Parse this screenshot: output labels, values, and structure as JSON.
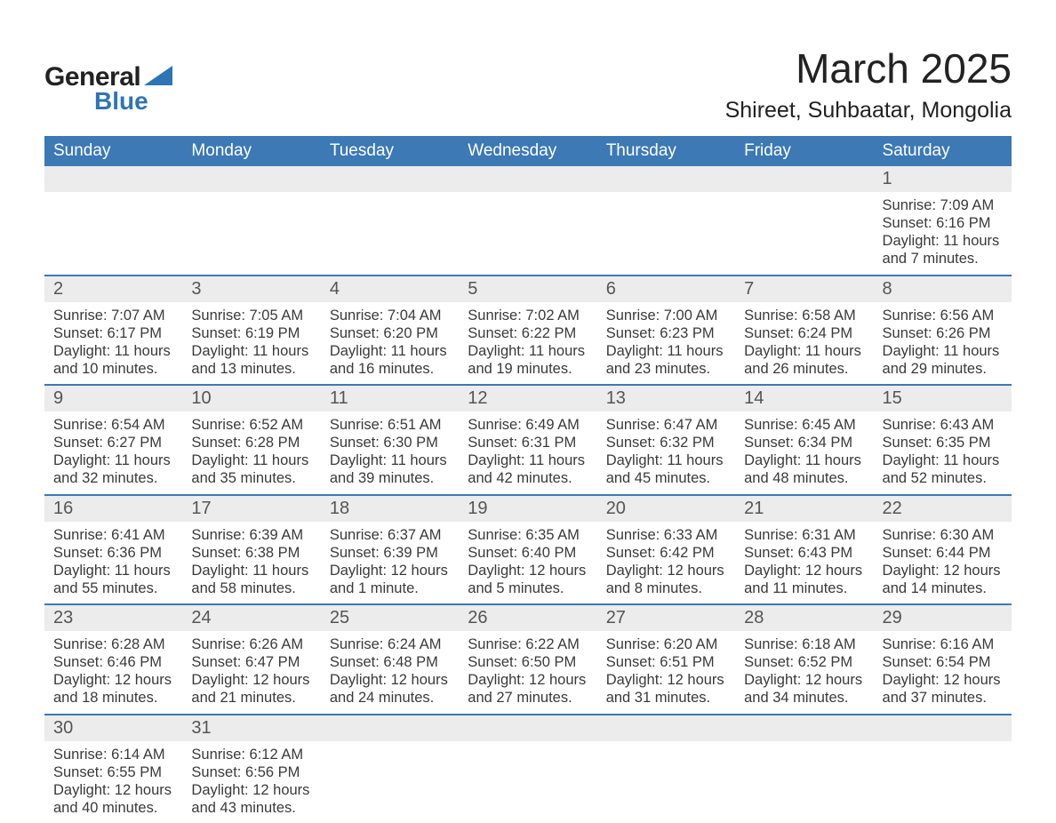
{
  "logo": {
    "line1": "General",
    "line2": "Blue"
  },
  "title": "March 2025",
  "location": "Shireet, Suhbaatar, Mongolia",
  "colors": {
    "header_bg": "#3c79b5",
    "header_text": "#ffffff",
    "daynum_bg": "#ececec",
    "daynum_text": "#555555",
    "body_text": "#3a3a3a",
    "week_separator": "#3c79b5",
    "brand_blue": "#2f74b5"
  },
  "typography": {
    "title_fontsize": 46,
    "location_fontsize": 25,
    "dayheader_fontsize": 19,
    "daynum_fontsize": 20,
    "detail_fontsize": 16.5
  },
  "day_headers": [
    "Sunday",
    "Monday",
    "Tuesday",
    "Wednesday",
    "Thursday",
    "Friday",
    "Saturday"
  ],
  "labels": {
    "sunrise": "Sunrise:",
    "sunset": "Sunset:",
    "daylight": "Daylight:"
  },
  "weeks": [
    [
      null,
      null,
      null,
      null,
      null,
      null,
      {
        "n": "1",
        "sr": "7:09 AM",
        "ss": "6:16 PM",
        "dl": "11 hours and 7 minutes."
      }
    ],
    [
      {
        "n": "2",
        "sr": "7:07 AM",
        "ss": "6:17 PM",
        "dl": "11 hours and 10 minutes."
      },
      {
        "n": "3",
        "sr": "7:05 AM",
        "ss": "6:19 PM",
        "dl": "11 hours and 13 minutes."
      },
      {
        "n": "4",
        "sr": "7:04 AM",
        "ss": "6:20 PM",
        "dl": "11 hours and 16 minutes."
      },
      {
        "n": "5",
        "sr": "7:02 AM",
        "ss": "6:22 PM",
        "dl": "11 hours and 19 minutes."
      },
      {
        "n": "6",
        "sr": "7:00 AM",
        "ss": "6:23 PM",
        "dl": "11 hours and 23 minutes."
      },
      {
        "n": "7",
        "sr": "6:58 AM",
        "ss": "6:24 PM",
        "dl": "11 hours and 26 minutes."
      },
      {
        "n": "8",
        "sr": "6:56 AM",
        "ss": "6:26 PM",
        "dl": "11 hours and 29 minutes."
      }
    ],
    [
      {
        "n": "9",
        "sr": "6:54 AM",
        "ss": "6:27 PM",
        "dl": "11 hours and 32 minutes."
      },
      {
        "n": "10",
        "sr": "6:52 AM",
        "ss": "6:28 PM",
        "dl": "11 hours and 35 minutes."
      },
      {
        "n": "11",
        "sr": "6:51 AM",
        "ss": "6:30 PM",
        "dl": "11 hours and 39 minutes."
      },
      {
        "n": "12",
        "sr": "6:49 AM",
        "ss": "6:31 PM",
        "dl": "11 hours and 42 minutes."
      },
      {
        "n": "13",
        "sr": "6:47 AM",
        "ss": "6:32 PM",
        "dl": "11 hours and 45 minutes."
      },
      {
        "n": "14",
        "sr": "6:45 AM",
        "ss": "6:34 PM",
        "dl": "11 hours and 48 minutes."
      },
      {
        "n": "15",
        "sr": "6:43 AM",
        "ss": "6:35 PM",
        "dl": "11 hours and 52 minutes."
      }
    ],
    [
      {
        "n": "16",
        "sr": "6:41 AM",
        "ss": "6:36 PM",
        "dl": "11 hours and 55 minutes."
      },
      {
        "n": "17",
        "sr": "6:39 AM",
        "ss": "6:38 PM",
        "dl": "11 hours and 58 minutes."
      },
      {
        "n": "18",
        "sr": "6:37 AM",
        "ss": "6:39 PM",
        "dl": "12 hours and 1 minute."
      },
      {
        "n": "19",
        "sr": "6:35 AM",
        "ss": "6:40 PM",
        "dl": "12 hours and 5 minutes."
      },
      {
        "n": "20",
        "sr": "6:33 AM",
        "ss": "6:42 PM",
        "dl": "12 hours and 8 minutes."
      },
      {
        "n": "21",
        "sr": "6:31 AM",
        "ss": "6:43 PM",
        "dl": "12 hours and 11 minutes."
      },
      {
        "n": "22",
        "sr": "6:30 AM",
        "ss": "6:44 PM",
        "dl": "12 hours and 14 minutes."
      }
    ],
    [
      {
        "n": "23",
        "sr": "6:28 AM",
        "ss": "6:46 PM",
        "dl": "12 hours and 18 minutes."
      },
      {
        "n": "24",
        "sr": "6:26 AM",
        "ss": "6:47 PM",
        "dl": "12 hours and 21 minutes."
      },
      {
        "n": "25",
        "sr": "6:24 AM",
        "ss": "6:48 PM",
        "dl": "12 hours and 24 minutes."
      },
      {
        "n": "26",
        "sr": "6:22 AM",
        "ss": "6:50 PM",
        "dl": "12 hours and 27 minutes."
      },
      {
        "n": "27",
        "sr": "6:20 AM",
        "ss": "6:51 PM",
        "dl": "12 hours and 31 minutes."
      },
      {
        "n": "28",
        "sr": "6:18 AM",
        "ss": "6:52 PM",
        "dl": "12 hours and 34 minutes."
      },
      {
        "n": "29",
        "sr": "6:16 AM",
        "ss": "6:54 PM",
        "dl": "12 hours and 37 minutes."
      }
    ],
    [
      {
        "n": "30",
        "sr": "6:14 AM",
        "ss": "6:55 PM",
        "dl": "12 hours and 40 minutes."
      },
      {
        "n": "31",
        "sr": "6:12 AM",
        "ss": "6:56 PM",
        "dl": "12 hours and 43 minutes."
      },
      null,
      null,
      null,
      null,
      null
    ]
  ]
}
